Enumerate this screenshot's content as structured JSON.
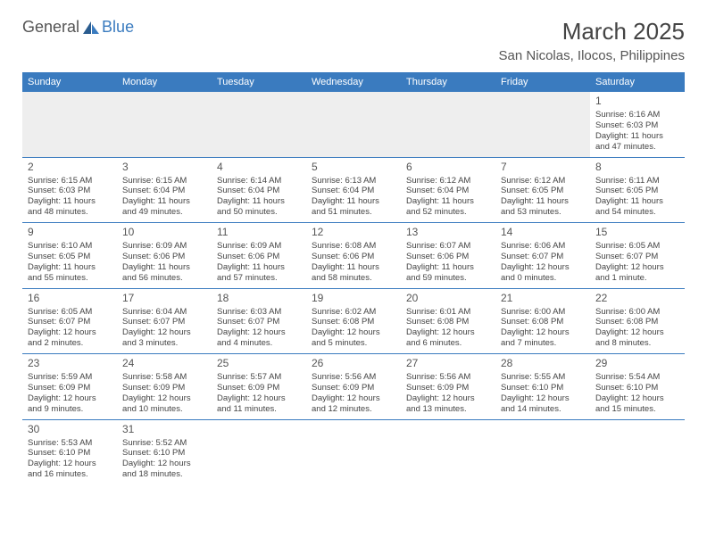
{
  "logo": {
    "text1": "General",
    "text2": "Blue",
    "sail_color": "#3a7bbf"
  },
  "title": "March 2025",
  "location": "San Nicolas, Ilocos, Philippines",
  "colors": {
    "header_bg": "#3a7bbf",
    "header_text": "#ffffff",
    "border": "#3a7bbf",
    "text": "#444444",
    "empty_bg": "#eeeeee"
  },
  "typography": {
    "title_fontsize": 26,
    "location_fontsize": 15,
    "dayheader_fontsize": 11,
    "daynum_fontsize": 12,
    "cell_fontsize": 9.5
  },
  "day_headers": [
    "Sunday",
    "Monday",
    "Tuesday",
    "Wednesday",
    "Thursday",
    "Friday",
    "Saturday"
  ],
  "weeks": [
    [
      null,
      null,
      null,
      null,
      null,
      null,
      {
        "n": "1",
        "sunrise": "Sunrise: 6:16 AM",
        "sunset": "Sunset: 6:03 PM",
        "daylight": "Daylight: 11 hours and 47 minutes."
      }
    ],
    [
      {
        "n": "2",
        "sunrise": "Sunrise: 6:15 AM",
        "sunset": "Sunset: 6:03 PM",
        "daylight": "Daylight: 11 hours and 48 minutes."
      },
      {
        "n": "3",
        "sunrise": "Sunrise: 6:15 AM",
        "sunset": "Sunset: 6:04 PM",
        "daylight": "Daylight: 11 hours and 49 minutes."
      },
      {
        "n": "4",
        "sunrise": "Sunrise: 6:14 AM",
        "sunset": "Sunset: 6:04 PM",
        "daylight": "Daylight: 11 hours and 50 minutes."
      },
      {
        "n": "5",
        "sunrise": "Sunrise: 6:13 AM",
        "sunset": "Sunset: 6:04 PM",
        "daylight": "Daylight: 11 hours and 51 minutes."
      },
      {
        "n": "6",
        "sunrise": "Sunrise: 6:12 AM",
        "sunset": "Sunset: 6:04 PM",
        "daylight": "Daylight: 11 hours and 52 minutes."
      },
      {
        "n": "7",
        "sunrise": "Sunrise: 6:12 AM",
        "sunset": "Sunset: 6:05 PM",
        "daylight": "Daylight: 11 hours and 53 minutes."
      },
      {
        "n": "8",
        "sunrise": "Sunrise: 6:11 AM",
        "sunset": "Sunset: 6:05 PM",
        "daylight": "Daylight: 11 hours and 54 minutes."
      }
    ],
    [
      {
        "n": "9",
        "sunrise": "Sunrise: 6:10 AM",
        "sunset": "Sunset: 6:05 PM",
        "daylight": "Daylight: 11 hours and 55 minutes."
      },
      {
        "n": "10",
        "sunrise": "Sunrise: 6:09 AM",
        "sunset": "Sunset: 6:06 PM",
        "daylight": "Daylight: 11 hours and 56 minutes."
      },
      {
        "n": "11",
        "sunrise": "Sunrise: 6:09 AM",
        "sunset": "Sunset: 6:06 PM",
        "daylight": "Daylight: 11 hours and 57 minutes."
      },
      {
        "n": "12",
        "sunrise": "Sunrise: 6:08 AM",
        "sunset": "Sunset: 6:06 PM",
        "daylight": "Daylight: 11 hours and 58 minutes."
      },
      {
        "n": "13",
        "sunrise": "Sunrise: 6:07 AM",
        "sunset": "Sunset: 6:06 PM",
        "daylight": "Daylight: 11 hours and 59 minutes."
      },
      {
        "n": "14",
        "sunrise": "Sunrise: 6:06 AM",
        "sunset": "Sunset: 6:07 PM",
        "daylight": "Daylight: 12 hours and 0 minutes."
      },
      {
        "n": "15",
        "sunrise": "Sunrise: 6:05 AM",
        "sunset": "Sunset: 6:07 PM",
        "daylight": "Daylight: 12 hours and 1 minute."
      }
    ],
    [
      {
        "n": "16",
        "sunrise": "Sunrise: 6:05 AM",
        "sunset": "Sunset: 6:07 PM",
        "daylight": "Daylight: 12 hours and 2 minutes."
      },
      {
        "n": "17",
        "sunrise": "Sunrise: 6:04 AM",
        "sunset": "Sunset: 6:07 PM",
        "daylight": "Daylight: 12 hours and 3 minutes."
      },
      {
        "n": "18",
        "sunrise": "Sunrise: 6:03 AM",
        "sunset": "Sunset: 6:07 PM",
        "daylight": "Daylight: 12 hours and 4 minutes."
      },
      {
        "n": "19",
        "sunrise": "Sunrise: 6:02 AM",
        "sunset": "Sunset: 6:08 PM",
        "daylight": "Daylight: 12 hours and 5 minutes."
      },
      {
        "n": "20",
        "sunrise": "Sunrise: 6:01 AM",
        "sunset": "Sunset: 6:08 PM",
        "daylight": "Daylight: 12 hours and 6 minutes."
      },
      {
        "n": "21",
        "sunrise": "Sunrise: 6:00 AM",
        "sunset": "Sunset: 6:08 PM",
        "daylight": "Daylight: 12 hours and 7 minutes."
      },
      {
        "n": "22",
        "sunrise": "Sunrise: 6:00 AM",
        "sunset": "Sunset: 6:08 PM",
        "daylight": "Daylight: 12 hours and 8 minutes."
      }
    ],
    [
      {
        "n": "23",
        "sunrise": "Sunrise: 5:59 AM",
        "sunset": "Sunset: 6:09 PM",
        "daylight": "Daylight: 12 hours and 9 minutes."
      },
      {
        "n": "24",
        "sunrise": "Sunrise: 5:58 AM",
        "sunset": "Sunset: 6:09 PM",
        "daylight": "Daylight: 12 hours and 10 minutes."
      },
      {
        "n": "25",
        "sunrise": "Sunrise: 5:57 AM",
        "sunset": "Sunset: 6:09 PM",
        "daylight": "Daylight: 12 hours and 11 minutes."
      },
      {
        "n": "26",
        "sunrise": "Sunrise: 5:56 AM",
        "sunset": "Sunset: 6:09 PM",
        "daylight": "Daylight: 12 hours and 12 minutes."
      },
      {
        "n": "27",
        "sunrise": "Sunrise: 5:56 AM",
        "sunset": "Sunset: 6:09 PM",
        "daylight": "Daylight: 12 hours and 13 minutes."
      },
      {
        "n": "28",
        "sunrise": "Sunrise: 5:55 AM",
        "sunset": "Sunset: 6:10 PM",
        "daylight": "Daylight: 12 hours and 14 minutes."
      },
      {
        "n": "29",
        "sunrise": "Sunrise: 5:54 AM",
        "sunset": "Sunset: 6:10 PM",
        "daylight": "Daylight: 12 hours and 15 minutes."
      }
    ],
    [
      {
        "n": "30",
        "sunrise": "Sunrise: 5:53 AM",
        "sunset": "Sunset: 6:10 PM",
        "daylight": "Daylight: 12 hours and 16 minutes."
      },
      {
        "n": "31",
        "sunrise": "Sunrise: 5:52 AM",
        "sunset": "Sunset: 6:10 PM",
        "daylight": "Daylight: 12 hours and 18 minutes."
      },
      null,
      null,
      null,
      null,
      null
    ]
  ]
}
